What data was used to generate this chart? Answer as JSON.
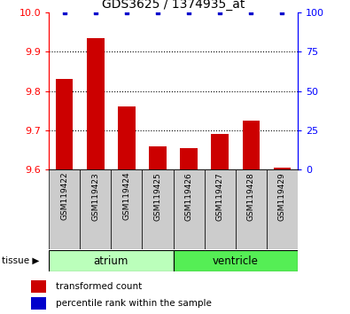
{
  "title": "GDS3625 / 1374935_at",
  "categories": [
    "GSM119422",
    "GSM119423",
    "GSM119424",
    "GSM119425",
    "GSM119426",
    "GSM119427",
    "GSM119428",
    "GSM119429"
  ],
  "bar_values": [
    9.83,
    9.935,
    9.76,
    9.66,
    9.655,
    9.69,
    9.725,
    9.605
  ],
  "percentile_values": [
    100,
    100,
    100,
    100,
    100,
    100,
    100,
    100
  ],
  "ylim_left": [
    9.6,
    10.0
  ],
  "ylim_right": [
    0,
    100
  ],
  "yticks_left": [
    9.6,
    9.7,
    9.8,
    9.9,
    10.0
  ],
  "yticks_right": [
    0,
    25,
    50,
    75,
    100
  ],
  "bar_color": "#cc0000",
  "dot_color": "#0000cc",
  "xlabel_bg": "#cccccc",
  "legend_bar_label": "transformed count",
  "legend_dot_label": "percentile rank within the sample",
  "tissue_header": "tissue",
  "atrium_color": "#bbffbb",
  "ventricle_color": "#55ee55",
  "background_color": "#ffffff"
}
